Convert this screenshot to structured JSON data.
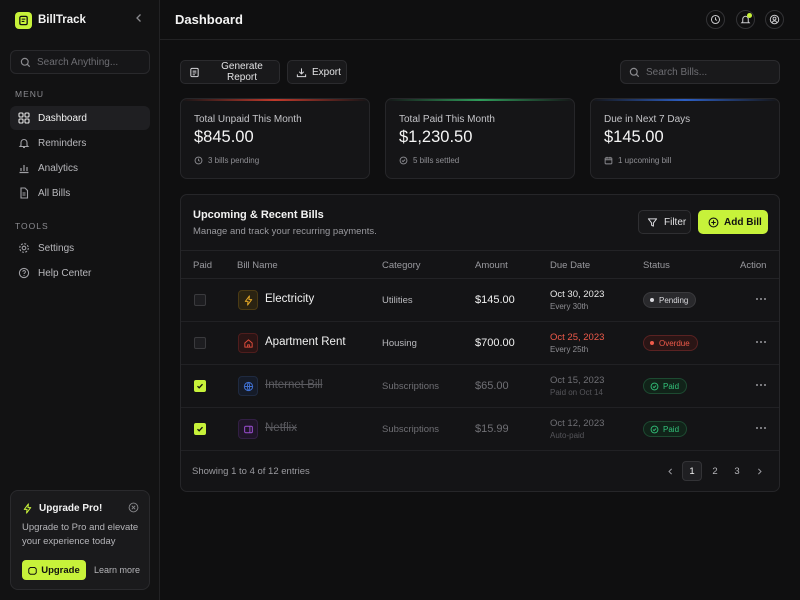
{
  "app": {
    "name": "BillTrack"
  },
  "colors": {
    "accent": "#c7f23a",
    "danger": "#ef5a4a",
    "success": "#33c27a",
    "background": "#0f0f10"
  },
  "sidebar": {
    "search_placeholder": "Search Anything...",
    "menu_label": "MENU",
    "menu_items": [
      {
        "label": "Dashboard",
        "icon": "grid-icon",
        "active": true
      },
      {
        "label": "Reminders",
        "icon": "bell-icon"
      },
      {
        "label": "Analytics",
        "icon": "chart-icon"
      },
      {
        "label": "All Bills",
        "icon": "document-icon"
      }
    ],
    "tools_label": "TOOLS",
    "tools_items": [
      {
        "label": "Settings",
        "icon": "gear-icon"
      },
      {
        "label": "Help Center",
        "icon": "help-icon"
      }
    ],
    "upgrade": {
      "title": "Upgrade Pro!",
      "text": "Upgrade to Pro and elevate your experience today",
      "button": "Upgrade",
      "link": "Learn more"
    }
  },
  "header": {
    "title": "Dashboard"
  },
  "toolbar": {
    "generate_report": "Generate Report",
    "export": "Export",
    "search_placeholder": "Search Bills..."
  },
  "stats": [
    {
      "label": "Total Unpaid This Month",
      "value": "$845.00",
      "foot": "3 bills pending",
      "accent": "#d0342c"
    },
    {
      "label": "Total Paid This Month",
      "value": "$1,230.50",
      "foot": "5 bills settled",
      "accent": "#2f9c5a"
    },
    {
      "label": "Due in Next 7 Days",
      "value": "$145.00",
      "foot": "1 upcoming bill",
      "accent": "#2d5fc4"
    }
  ],
  "table": {
    "title": "Upcoming & Recent Bills",
    "subtitle": "Manage and track your recurring payments.",
    "filter_label": "Filter",
    "add_label": "Add Bill",
    "columns": {
      "paid": "Paid",
      "name": "Bill Name",
      "category": "Category",
      "amount": "Amount",
      "due": "Due Date",
      "status": "Status",
      "action": "Action"
    },
    "rows": [
      {
        "name": "Electricity",
        "category": "Utilities",
        "amount": "$145.00",
        "due": "Oct 30, 2023",
        "due_sub": "Every 30th",
        "status": "Pending",
        "state": "pending",
        "icon": "lightning-icon",
        "icon_color": "#e0a526",
        "checked": false
      },
      {
        "name": "Apartment Rent",
        "category": "Housing",
        "amount": "$700.00",
        "due": "Oct 25, 2023",
        "due_sub": "Every 25th",
        "status": "Overdue",
        "state": "overdue",
        "icon": "home-icon",
        "icon_color": "#d84a3a",
        "checked": false
      },
      {
        "name": "Internet Bill",
        "category": "Subscriptions",
        "amount": "$65.00",
        "due": "Oct 15, 2023",
        "due_sub": "Paid on Oct 14",
        "status": "Paid",
        "state": "paid",
        "icon": "globe-icon",
        "icon_color": "#3f6fd0",
        "checked": true
      },
      {
        "name": "Netflix",
        "category": "Subscriptions",
        "amount": "$15.99",
        "due": "Oct 12, 2023",
        "due_sub": "Auto-paid",
        "status": "Paid",
        "state": "paid",
        "icon": "tv-icon",
        "icon_color": "#9b4ed1",
        "checked": true
      }
    ],
    "footer": "Showing 1 to 4 of 12 entries",
    "pages": [
      "1",
      "2",
      "3"
    ],
    "current_page": "1"
  }
}
